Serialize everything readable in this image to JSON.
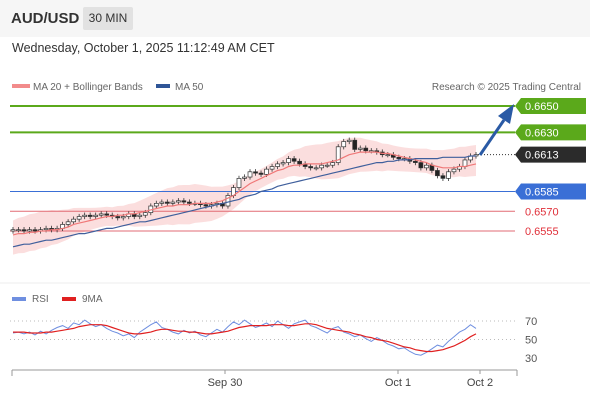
{
  "header": {
    "symbol": "AUD/USD",
    "timeframe": "30 MIN"
  },
  "datetime": "Wednesday, October 1, 2025 11:12:49 AM CET",
  "legend": {
    "bb": "MA 20 + Bollinger Bands",
    "ma50": "MA 50",
    "rsi": "RSI",
    "ma9": "9MA"
  },
  "credit": "Research © 2025 Trading Central",
  "colors": {
    "resistance": "#5ba91b",
    "support_major": "#3a6fd6",
    "support_minor": "#e26b74",
    "ma20": "#f07878",
    "ma50": "#3f5f9c",
    "bands": "#f9d3d3",
    "rsi": "#6f8fe0",
    "rsi_ma": "#e02020",
    "arrow": "#2a5aa5"
  },
  "chart_data": {
    "type": "line",
    "price_range": [
      0.6531,
      0.6658
    ],
    "levels": [
      {
        "label": "0.6650",
        "value": 0.665,
        "kind": "resistance"
      },
      {
        "label": "0.6630",
        "value": 0.663,
        "kind": "resistance"
      },
      {
        "label": "0.6613",
        "value": 0.6613,
        "kind": "last"
      },
      {
        "label": "0.6585",
        "value": 0.6585,
        "kind": "support"
      },
      {
        "label": "0.6570",
        "value": 0.657,
        "kind": "support-minor"
      },
      {
        "label": "0.6555",
        "value": 0.6555,
        "kind": "support-minor"
      }
    ],
    "x_labels": [
      "Sep 30",
      "Oct 1",
      "Oct 2"
    ],
    "rsi_ticks": [
      70,
      50,
      30
    ],
    "rsi_range": [
      20,
      80
    ],
    "close": [
      0.6556,
      0.6556,
      0.6555,
      0.6556,
      0.6555,
      0.6556,
      0.6557,
      0.6556,
      0.6557,
      0.656,
      0.6562,
      0.6564,
      0.6566,
      0.6567,
      0.6566,
      0.6567,
      0.6568,
      0.6567,
      0.6566,
      0.6565,
      0.6566,
      0.6568,
      0.6566,
      0.6567,
      0.6569,
      0.6574,
      0.6576,
      0.6577,
      0.6576,
      0.6577,
      0.6578,
      0.6577,
      0.6576,
      0.6576,
      0.6575,
      0.6574,
      0.6575,
      0.6576,
      0.6574,
      0.6582,
      0.6588,
      0.6595,
      0.6596,
      0.66,
      0.6599,
      0.6598,
      0.6602,
      0.6604,
      0.6606,
      0.6607,
      0.661,
      0.6608,
      0.6606,
      0.6604,
      0.6603,
      0.6603,
      0.6605,
      0.6605,
      0.6607,
      0.6619,
      0.6623,
      0.6624,
      0.6617,
      0.6618,
      0.6616,
      0.6616,
      0.6615,
      0.6613,
      0.6613,
      0.6611,
      0.661,
      0.661,
      0.6608,
      0.6607,
      0.6603,
      0.6605,
      0.6601,
      0.6597,
      0.6595,
      0.66,
      0.6602,
      0.6604,
      0.6609,
      0.6612,
      0.6613
    ],
    "ma20": [
      0.6552,
      0.6553,
      0.6553,
      0.6554,
      0.6554,
      0.6555,
      0.6555,
      0.6556,
      0.6556,
      0.6557,
      0.6558,
      0.656,
      0.6561,
      0.6562,
      0.6563,
      0.6564,
      0.6565,
      0.6566,
      0.6566,
      0.6567,
      0.6567,
      0.6568,
      0.6568,
      0.6569,
      0.657,
      0.6571,
      0.6572,
      0.6573,
      0.6574,
      0.6574,
      0.6575,
      0.6575,
      0.6575,
      0.6576,
      0.6576,
      0.6576,
      0.6576,
      0.6577,
      0.6578,
      0.658,
      0.6582,
      0.6585,
      0.6588,
      0.6591,
      0.6593,
      0.6595,
      0.6597,
      0.6599,
      0.6601,
      0.6602,
      0.6604,
      0.6605,
      0.6605,
      0.6606,
      0.6606,
      0.6606,
      0.6606,
      0.6607,
      0.6608,
      0.6609,
      0.6611,
      0.6613,
      0.6614,
      0.6615,
      0.6615,
      0.6615,
      0.6615,
      0.6614,
      0.6614,
      0.6613,
      0.6612,
      0.6611,
      0.661,
      0.6609,
      0.6608,
      0.6607,
      0.6605,
      0.6604,
      0.6603,
      0.6603,
      0.6603,
      0.6604,
      0.6604,
      0.6605,
      0.6606
    ],
    "ma50": [
      0.6543,
      0.6544,
      0.6545,
      0.6545,
      0.6546,
      0.6547,
      0.6548,
      0.6548,
      0.6549,
      0.655,
      0.6551,
      0.6552,
      0.6553,
      0.6553,
      0.6554,
      0.6555,
      0.6556,
      0.6557,
      0.6557,
      0.6558,
      0.6559,
      0.656,
      0.6561,
      0.6562,
      0.6562,
      0.6563,
      0.6564,
      0.6565,
      0.6566,
      0.6567,
      0.6568,
      0.6569,
      0.657,
      0.6571,
      0.6572,
      0.6573,
      0.6574,
      0.6575,
      0.6576,
      0.6577,
      0.6578,
      0.6579,
      0.6581,
      0.6582,
      0.6583,
      0.6585,
      0.6586,
      0.6587,
      0.6589,
      0.659,
      0.6591,
      0.6592,
      0.6593,
      0.6594,
      0.6595,
      0.6596,
      0.6597,
      0.6598,
      0.6599,
      0.66,
      0.6601,
      0.6602,
      0.6603,
      0.6604,
      0.6605,
      0.6606,
      0.6607,
      0.6607,
      0.6608,
      0.6608,
      0.6609,
      0.6609,
      0.6609,
      0.661,
      0.661,
      0.661,
      0.661,
      0.661,
      0.6611,
      0.6611,
      0.6611,
      0.6611,
      0.6611,
      0.6612,
      0.6612
    ],
    "rsi": [
      57,
      58,
      56,
      58,
      55,
      59,
      56,
      60,
      63,
      65,
      62,
      68,
      66,
      71,
      67,
      64,
      66,
      62,
      59,
      57,
      54,
      56,
      52,
      58,
      62,
      66,
      69,
      63,
      61,
      58,
      56,
      60,
      57,
      59,
      55,
      53,
      57,
      61,
      58,
      64,
      69,
      66,
      71,
      67,
      63,
      65,
      68,
      64,
      70,
      66,
      62,
      67,
      69,
      71,
      65,
      63,
      60,
      57,
      62,
      64,
      58,
      56,
      53,
      55,
      51,
      48,
      52,
      49,
      45,
      43,
      40,
      41,
      37,
      34,
      33,
      36,
      40,
      44,
      42,
      48,
      53,
      58,
      61,
      66,
      62
    ],
    "rsi_ma": [
      58,
      58,
      58,
      57,
      57,
      57,
      58,
      58,
      59,
      60,
      61,
      62,
      64,
      65,
      66,
      66,
      66,
      65,
      63,
      61,
      59,
      57,
      56,
      56,
      57,
      58,
      60,
      61,
      61,
      60,
      59,
      59,
      58,
      58,
      57,
      56,
      56,
      57,
      58,
      59,
      61,
      63,
      64,
      65,
      65,
      65,
      65,
      66,
      66,
      66,
      65,
      65,
      66,
      67,
      67,
      66,
      64,
      62,
      61,
      60,
      59,
      58,
      56,
      55,
      53,
      52,
      50,
      49,
      48,
      46,
      44,
      42,
      41,
      39,
      38,
      37,
      37,
      38,
      39,
      41,
      43,
      46,
      49,
      53,
      56
    ]
  }
}
